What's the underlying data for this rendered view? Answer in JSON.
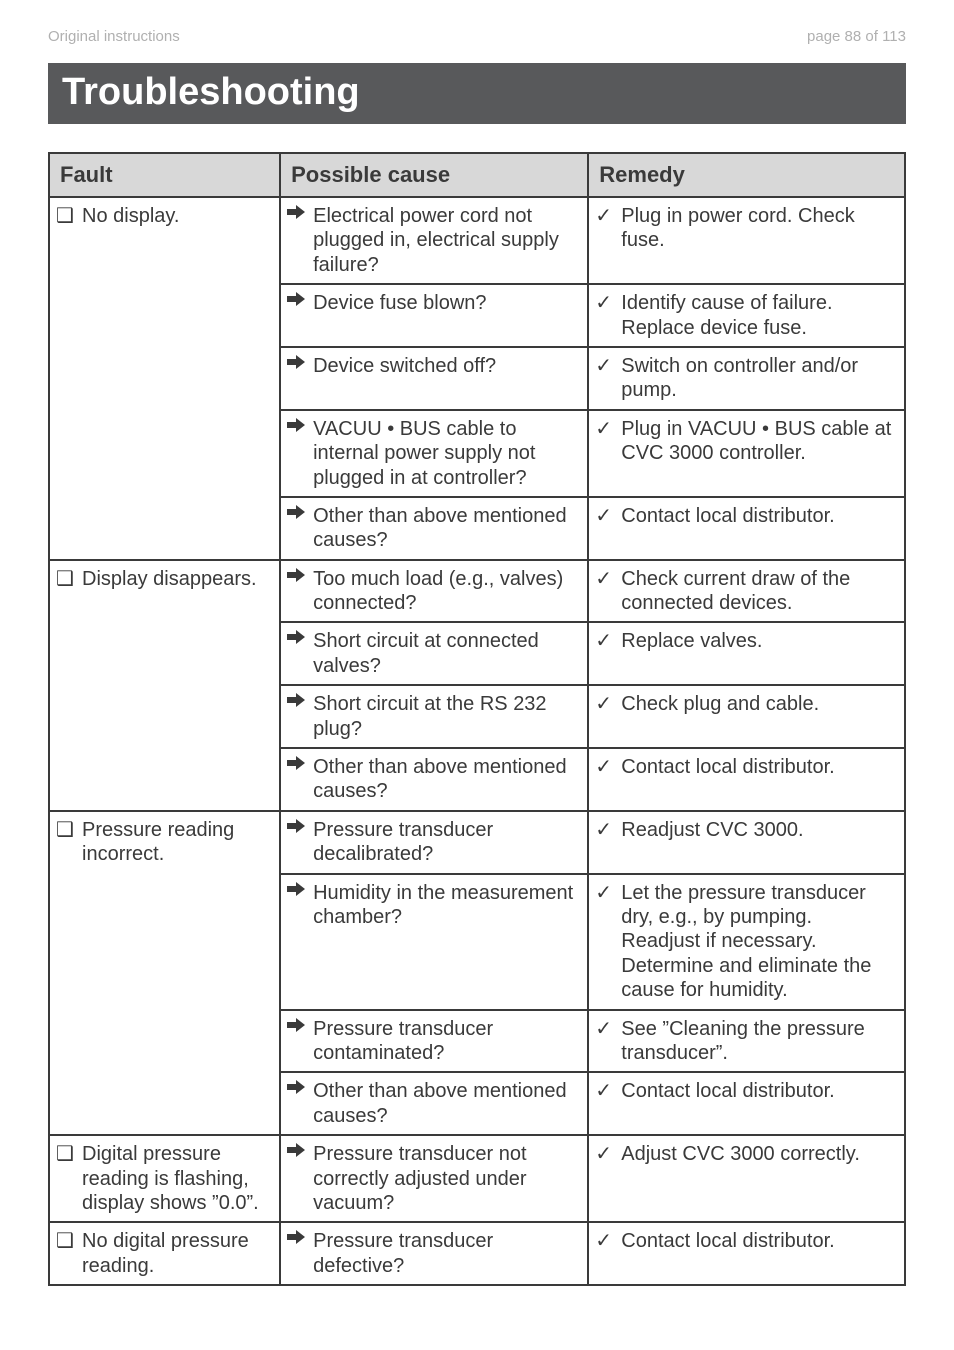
{
  "header": {
    "left": "Original instructions",
    "right": "page 88 of 113"
  },
  "section_title": "Troubleshooting",
  "colors": {
    "bar_bg": "#58595b",
    "th_bg": "#d8d8d8",
    "text": "#3a3a3a",
    "header_grey": "#b0b0b0"
  },
  "table": {
    "headers": [
      "Fault",
      "Possible cause",
      "Remedy"
    ],
    "rows": [
      {
        "fault": "No display.",
        "pairs": [
          {
            "cause": "Electrical power cord not plugged in, electrical supply failure?",
            "remedy": "Plug in power cord. Check fuse."
          },
          {
            "cause": "Device fuse blown?",
            "remedy": "Identify cause of failure. Replace device fuse."
          },
          {
            "cause": "Device switched off?",
            "remedy": "Switch on controller and/or pump."
          },
          {
            "cause": "VACUU • BUS cable to internal power supply not plugged in at controller?",
            "remedy": "Plug in VACUU • BUS cable at CVC 3000 controller."
          },
          {
            "cause": "Other than above mentioned causes?",
            "remedy": "Contact local distributor."
          }
        ]
      },
      {
        "fault": "Display disappears.",
        "pairs": [
          {
            "cause": "Too much load (e.g., valves) connected?",
            "remedy": "Check current draw of the connected devices."
          },
          {
            "cause": "Short circuit at connected valves?",
            "remedy": "Replace valves."
          },
          {
            "cause": "Short circuit at the RS 232 plug?",
            "remedy": "Check plug and cable."
          },
          {
            "cause": "Other than above mentioned causes?",
            "remedy": "Contact local distributor."
          }
        ]
      },
      {
        "fault": "Pressure reading incorrect.",
        "pairs": [
          {
            "cause": "Pressure transducer decalibrated?",
            "remedy": "Readjust CVC 3000."
          },
          {
            "cause": "Humidity in the measurement chamber?",
            "remedy": "Let the pressure transducer dry, e.g., by pumping. Readjust if necessary. Determine and eliminate the cause for humidity."
          },
          {
            "cause": "Pressure transducer contaminated?",
            "remedy": "See ”Cleaning the pressure transducer”."
          },
          {
            "cause": "Other than above mentioned causes?",
            "remedy": "Contact local distributor."
          }
        ]
      },
      {
        "fault": "Digital pressure reading is flashing, display shows ”0.0”.",
        "pairs": [
          {
            "cause": "Pressure transducer not correctly adjusted under vacuum?",
            "remedy": "Adjust CVC 3000 correctly."
          }
        ]
      },
      {
        "fault": "No digital pressure reading.",
        "pairs": [
          {
            "cause": "Pressure transducer defective?",
            "remedy": "Contact local distributor."
          }
        ]
      }
    ]
  }
}
